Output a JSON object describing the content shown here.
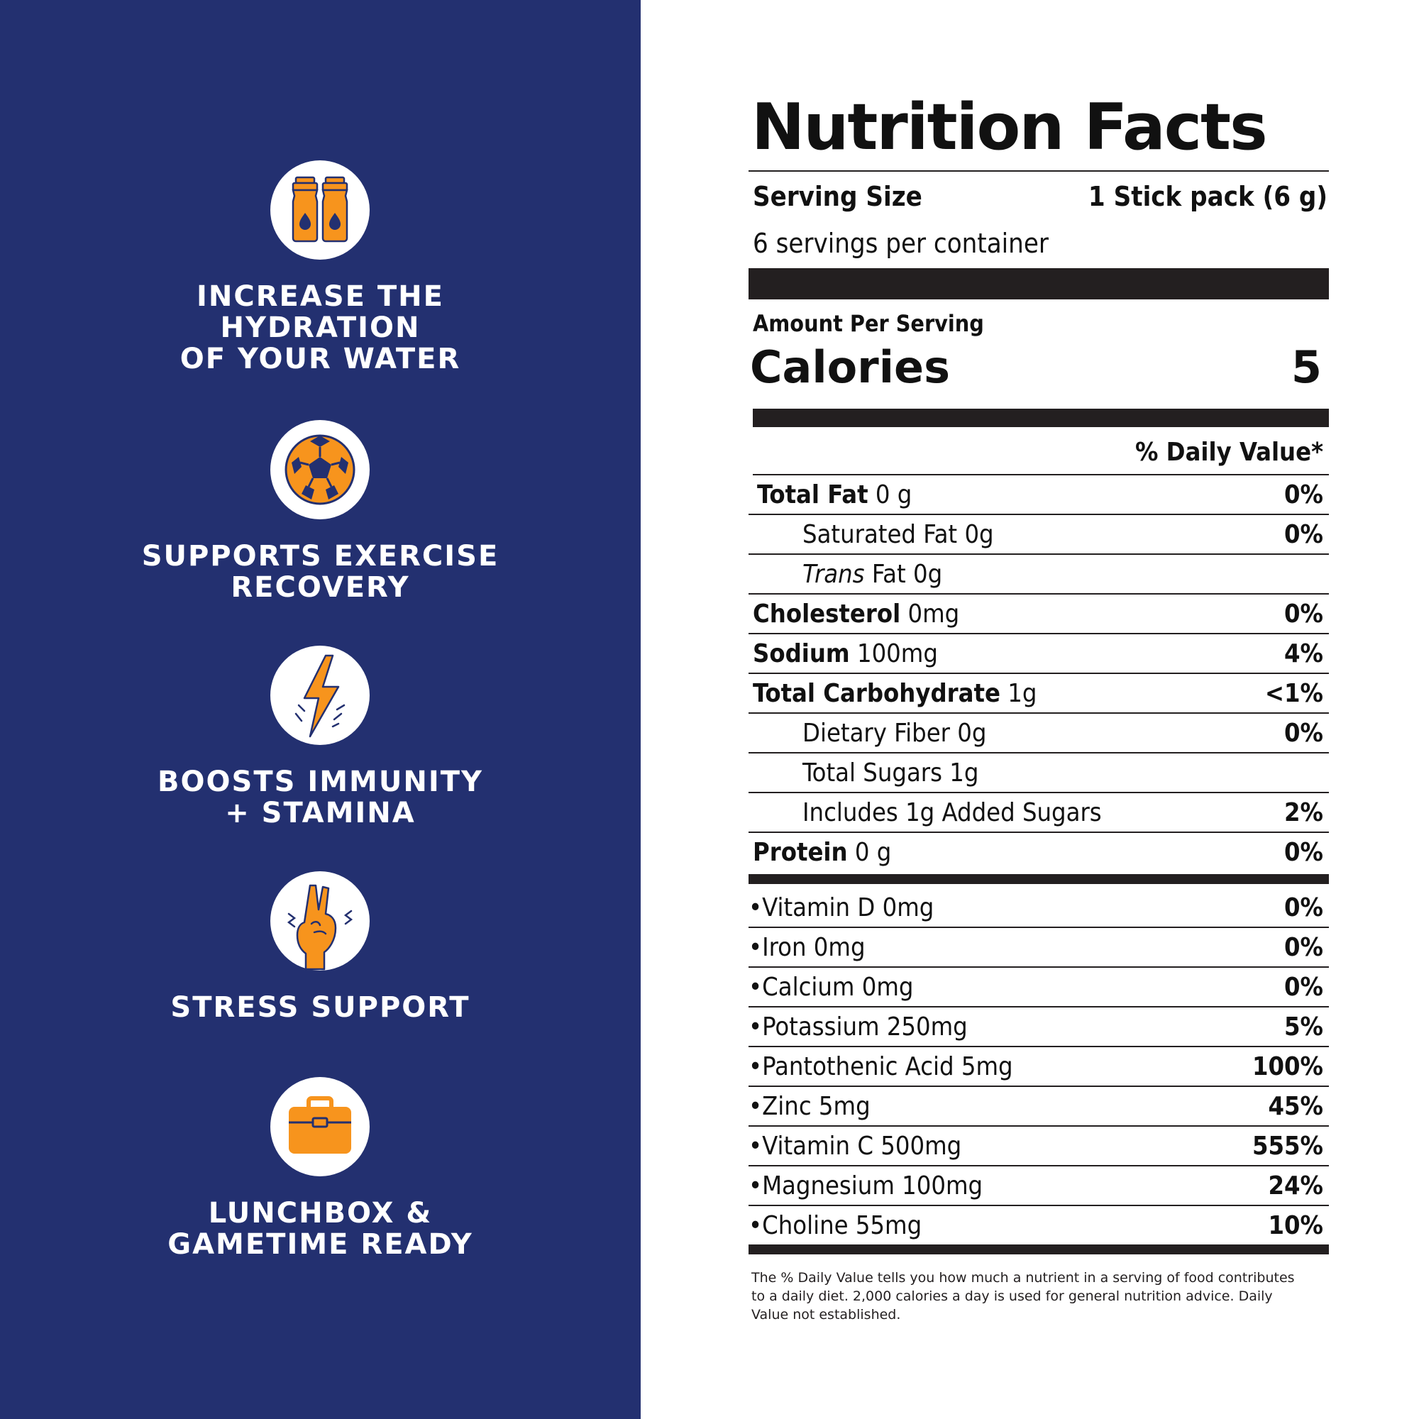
{
  "colors": {
    "panel": "#233070",
    "accent": "#f7941d",
    "icon_stroke": "#233070",
    "ink": "#231f20"
  },
  "benefits": [
    {
      "icon": "water-bottles-icon",
      "label": [
        "INCREASE THE",
        "HYDRATION",
        "OF YOUR WATER"
      ]
    },
    {
      "icon": "soccer-ball-icon",
      "label": [
        "SUPPORTS EXERCISE",
        "RECOVERY"
      ]
    },
    {
      "icon": "lightning-bolt-icon",
      "label": [
        "BOOSTS IMMUNITY",
        "+ STAMINA"
      ]
    },
    {
      "icon": "peace-hand-icon",
      "label": [
        "STRESS SUPPORT"
      ]
    },
    {
      "icon": "lunchbox-icon",
      "label": [
        "LUNCHBOX &",
        "GAMETIME READY"
      ]
    }
  ],
  "facts": {
    "title": "Nutrition Facts",
    "serving_size_label": "Serving Size",
    "serving_size_value": "1 Stick pack (6 g)",
    "servings_per_container": "6 servings per container",
    "amount_per_serving": "Amount Per Serving",
    "calories_label": "Calories",
    "calories_value": "5",
    "daily_value_header": "% Daily Value*",
    "nutrients": [
      {
        "name": "Total Fat",
        "amount": "0 g",
        "dv": "0%",
        "bold_name": true,
        "indent": false
      },
      {
        "name": "Saturated Fat",
        "amount": "0g",
        "dv": "0%",
        "bold_name": false,
        "indent": true
      },
      {
        "name_italic": "Trans",
        "name": "Fat",
        "amount": "0g",
        "dv": "",
        "bold_name": false,
        "indent": true
      },
      {
        "name": "Cholesterol",
        "amount": "0mg",
        "dv": "0%",
        "bold_name": true,
        "indent": false
      },
      {
        "name": "Sodium",
        "amount": "100mg",
        "dv": "4%",
        "bold_name": true,
        "indent": false
      },
      {
        "name": "Total Carbohydrate",
        "amount": "1g",
        "dv": "<1%",
        "bold_name": true,
        "indent": false
      },
      {
        "name": "Dietary Fiber",
        "amount": "0g",
        "dv": "0%",
        "bold_name": false,
        "indent": true
      },
      {
        "name": "Total Sugars",
        "amount": "1g",
        "dv": "",
        "bold_name": false,
        "indent": true
      },
      {
        "name": "Includes 1g Added Sugars",
        "amount": "",
        "dv": "2%",
        "bold_name": false,
        "indent": true
      },
      {
        "name": "Protein",
        "amount": "0 g",
        "dv": "0%",
        "bold_name": true,
        "indent": false
      }
    ],
    "vitamins": [
      {
        "text": "Vitamin D 0mg",
        "dv": "0%"
      },
      {
        "text": "Iron 0mg",
        "dv": "0%"
      },
      {
        "text": "Calcium 0mg",
        "dv": "0%"
      },
      {
        "text": "Potassium 250mg",
        "dv": "5%"
      },
      {
        "text": "Pantothenic Acid 5mg",
        "dv": "100%"
      },
      {
        "text": "Zinc 5mg",
        "dv": "45%"
      },
      {
        "text": "Vitamin C 500mg",
        "dv": "555%"
      },
      {
        "text": "Magnesium 100mg",
        "dv": "24%"
      },
      {
        "text": "Choline 55mg",
        "dv": "10%"
      }
    ],
    "footnote": "The % Daily Value tells you how much a nutrient in a serving of food contributes to a daily diet. 2,000 calories a day is used for general nutrition advice. Daily Value not established."
  }
}
